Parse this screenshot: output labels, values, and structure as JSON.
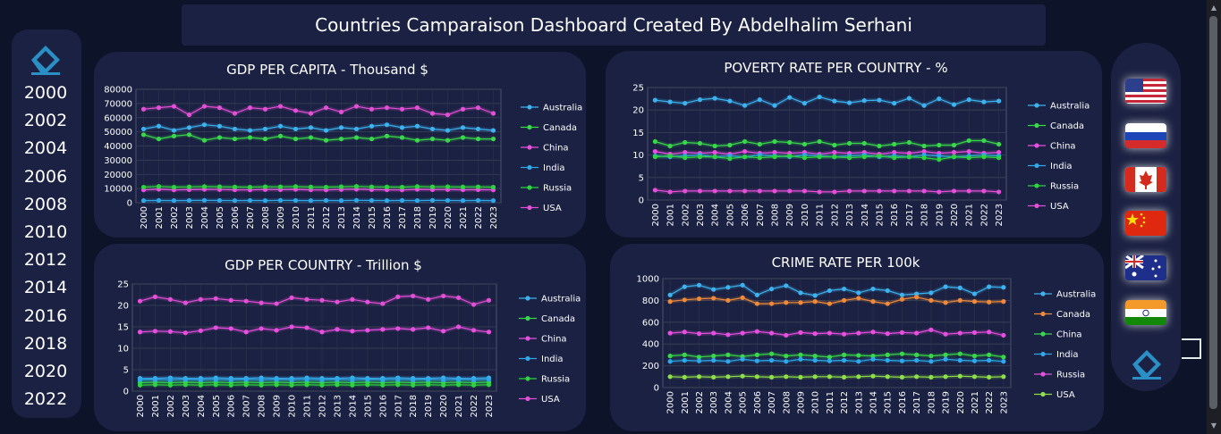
{
  "title": "Countries Camparaison Dashboard Created By Abdelhalim Serhani",
  "years": [
    "2000",
    "2002",
    "2004",
    "2006",
    "2008",
    "2010",
    "2012",
    "2014",
    "2016",
    "2018",
    "2020",
    "2022"
  ],
  "flags": [
    "usa-flag-icon",
    "russia-flag-icon",
    "canada-flag-icon",
    "china-flag-icon",
    "australia-flag-icon",
    "india-flag-icon"
  ],
  "colors": {
    "Australia": "#3cb3f0",
    "Canada": "#39d84a",
    "China": "#e84fe0",
    "India": "#2ea8e8",
    "Russia": "#2ed43f",
    "USA": "#e34fd6",
    "Canada_orange": "#f08a3a",
    "Russia_pink": "#e84fe0",
    "USA_green": "#8ee04a"
  },
  "chart_data": [
    {
      "type": "line",
      "title": "GDP PER CAPITA - Thousand $",
      "x": [
        "2000",
        "2001",
        "2002",
        "2003",
        "2004",
        "2005",
        "2006",
        "2007",
        "2008",
        "2009",
        "2010",
        "2011",
        "2012",
        "2013",
        "2014",
        "2015",
        "2016",
        "2017",
        "2018",
        "2019",
        "2020",
        "2021",
        "2022",
        "2023"
      ],
      "yticks": [
        "0",
        "10000",
        "20000",
        "30000",
        "40000",
        "50000",
        "60000",
        "70000",
        "80000"
      ],
      "ylim": [
        0,
        80000
      ],
      "series": [
        {
          "name": "Australia",
          "color": "#3cb3f0",
          "values": [
            52000,
            54000,
            51000,
            53000,
            55000,
            54000,
            52000,
            51000,
            52000,
            54000,
            52000,
            53000,
            51000,
            53000,
            52000,
            54000,
            55000,
            53000,
            54000,
            52000,
            51000,
            53000,
            52000,
            51000
          ]
        },
        {
          "name": "Canada",
          "color": "#39d84a",
          "values": [
            48000,
            45000,
            47000,
            48000,
            44000,
            46000,
            45000,
            46000,
            45000,
            47000,
            45000,
            46000,
            44000,
            45000,
            46000,
            45000,
            47000,
            46000,
            44000,
            45000,
            44000,
            46000,
            45000,
            45000
          ]
        },
        {
          "name": "China",
          "color": "#e84fe0",
          "values": [
            9000,
            9500,
            9000,
            9200,
            9400,
            9300,
            9100,
            9000,
            9300,
            9200,
            9400,
            9100,
            9000,
            9300,
            9500,
            9200,
            9100,
            9000,
            9400,
            9200,
            9300,
            9100,
            9200,
            9000
          ]
        },
        {
          "name": "India",
          "color": "#2ea8e8",
          "values": [
            1500,
            1600,
            1500,
            1600,
            1700,
            1600,
            1500,
            1600,
            1500,
            1700,
            1600,
            1500,
            1600,
            1500,
            1700,
            1600,
            1500,
            1600,
            1500,
            1700,
            1600,
            1500,
            1600,
            1500
          ]
        },
        {
          "name": "Russia",
          "color": "#2ed43f",
          "values": [
            11000,
            11500,
            11000,
            11200,
            11400,
            11300,
            11100,
            11000,
            11300,
            11200,
            11400,
            11100,
            11000,
            11300,
            11500,
            11200,
            11100,
            11000,
            11400,
            11200,
            11300,
            11100,
            11200,
            11000
          ]
        },
        {
          "name": "USA",
          "color": "#e34fd6",
          "values": [
            66000,
            67000,
            68000,
            62000,
            68000,
            67000,
            63000,
            67000,
            66000,
            68000,
            65000,
            63000,
            67000,
            64000,
            68000,
            66000,
            67000,
            66000,
            67000,
            63000,
            62000,
            66000,
            67000,
            63000
          ]
        }
      ]
    },
    {
      "type": "line",
      "title": "POVERTY RATE PER COUNTRY - %",
      "x": [
        "2000",
        "2001",
        "2002",
        "2003",
        "2004",
        "2005",
        "2006",
        "2007",
        "2008",
        "2009",
        "2010",
        "2011",
        "2012",
        "2013",
        "2014",
        "2015",
        "2016",
        "2017",
        "2018",
        "2019",
        "2020",
        "2021",
        "2022",
        "2023"
      ],
      "yticks": [
        "0",
        "5",
        "10",
        "15",
        "20",
        "25"
      ],
      "ylim": [
        0,
        25
      ],
      "series": [
        {
          "name": "Australia",
          "color": "#3cb3f0",
          "values": [
            22.2,
            21.8,
            21.5,
            22.3,
            22.6,
            22.0,
            21.0,
            22.3,
            21.0,
            22.8,
            21.5,
            22.9,
            22.0,
            21.6,
            22.1,
            22.2,
            21.5,
            22.6,
            21.0,
            22.5,
            21.2,
            22.3,
            21.8,
            22.0
          ]
        },
        {
          "name": "Canada",
          "color": "#39d84a",
          "values": [
            13.0,
            12.0,
            12.8,
            12.6,
            12.0,
            12.2,
            13.0,
            12.4,
            13.0,
            12.8,
            12.4,
            13.0,
            12.2,
            12.6,
            12.6,
            12.0,
            12.4,
            12.8,
            12.0,
            12.2,
            12.2,
            13.2,
            13.2,
            12.4
          ]
        },
        {
          "name": "China",
          "color": "#e84fe0",
          "values": [
            10.8,
            10.2,
            10.6,
            10.4,
            10.6,
            10.2,
            10.8,
            10.4,
            10.6,
            10.4,
            10.6,
            10.2,
            10.6,
            10.4,
            10.6,
            10.2,
            10.6,
            10.4,
            10.8,
            10.4,
            10.6,
            10.8,
            10.4,
            10.6
          ]
        },
        {
          "name": "India",
          "color": "#2ea8e8",
          "values": [
            9.8,
            9.6,
            9.8,
            10.0,
            9.6,
            9.8,
            9.6,
            10.0,
            9.8,
            9.6,
            10.0,
            9.8,
            9.6,
            9.8,
            10.0,
            9.6,
            9.8,
            9.6,
            10.0,
            9.8,
            9.6,
            9.8,
            10.0,
            9.8
          ]
        },
        {
          "name": "Russia",
          "color": "#2ed43f",
          "values": [
            9.6,
            9.8,
            9.4,
            9.6,
            9.6,
            9.2,
            9.6,
            9.4,
            9.6,
            9.8,
            9.4,
            9.6,
            9.6,
            9.4,
            9.6,
            9.8,
            9.4,
            9.6,
            9.4,
            9.0,
            9.6,
            9.4,
            9.6,
            9.4
          ]
        },
        {
          "name": "USA",
          "color": "#e34fd6",
          "values": [
            2.2,
            1.8,
            2.0,
            2.0,
            2.0,
            2.0,
            2.0,
            2.0,
            2.0,
            2.0,
            2.0,
            1.8,
            1.8,
            2.0,
            2.0,
            2.0,
            2.0,
            2.0,
            2.0,
            1.8,
            2.0,
            2.0,
            2.0,
            1.8
          ]
        }
      ]
    },
    {
      "type": "line",
      "title": "GDP PER COUNTRY - Trillion $",
      "x": [
        "2000",
        "2001",
        "2002",
        "2003",
        "2004",
        "2005",
        "2006",
        "2007",
        "2008",
        "2009",
        "2010",
        "2011",
        "2012",
        "2013",
        "2014",
        "2015",
        "2016",
        "2017",
        "2018",
        "2019",
        "2020",
        "2021",
        "2022",
        "2023"
      ],
      "yticks": [
        "0",
        "5",
        "10",
        "15",
        "20",
        "25"
      ],
      "ylim": [
        0,
        25
      ],
      "series": [
        {
          "name": "Australia",
          "color": "#3cb3f0",
          "values": [
            3.0,
            3.0,
            3.1,
            3.0,
            3.0,
            3.1,
            3.0,
            3.0,
            3.1,
            3.0,
            3.0,
            3.1,
            3.0,
            3.0,
            3.1,
            3.0,
            3.0,
            3.1,
            3.0,
            3.0,
            3.1,
            3.0,
            3.0,
            3.1
          ]
        },
        {
          "name": "Canada",
          "color": "#39d84a",
          "values": [
            2.0,
            2.1,
            2.0,
            2.1,
            2.0,
            2.1,
            2.0,
            2.1,
            2.0,
            2.1,
            2.0,
            2.1,
            2.0,
            2.1,
            2.0,
            2.1,
            2.0,
            2.1,
            2.0,
            2.1,
            2.0,
            2.1,
            2.0,
            2.1
          ]
        },
        {
          "name": "China",
          "color": "#e84fe0",
          "values": [
            13.8,
            14.0,
            13.9,
            13.6,
            14.1,
            14.8,
            14.6,
            13.8,
            14.6,
            14.2,
            15.0,
            14.8,
            13.8,
            14.4,
            14.0,
            14.2,
            14.4,
            14.6,
            14.4,
            14.8,
            14.0,
            15.0,
            14.2,
            13.8
          ]
        },
        {
          "name": "India",
          "color": "#2ea8e8",
          "values": [
            2.6,
            2.7,
            2.6,
            2.7,
            2.6,
            2.7,
            2.6,
            2.7,
            2.6,
            2.7,
            2.6,
            2.7,
            2.6,
            2.7,
            2.6,
            2.7,
            2.6,
            2.7,
            2.6,
            2.7,
            2.6,
            2.7,
            2.6,
            2.7
          ]
        },
        {
          "name": "Russia",
          "color": "#2ed43f",
          "values": [
            1.4,
            1.5,
            1.4,
            1.5,
            1.4,
            1.5,
            1.4,
            1.5,
            1.4,
            1.5,
            1.4,
            1.5,
            1.4,
            1.5,
            1.4,
            1.5,
            1.4,
            1.5,
            1.4,
            1.5,
            1.4,
            1.5,
            1.4,
            1.5
          ]
        },
        {
          "name": "USA",
          "color": "#e34fd6",
          "values": [
            21.0,
            22.0,
            21.4,
            20.6,
            21.4,
            21.6,
            21.2,
            21.0,
            20.6,
            20.4,
            21.8,
            21.4,
            21.2,
            20.8,
            21.4,
            20.8,
            20.4,
            22.0,
            22.2,
            21.4,
            22.2,
            21.8,
            20.2,
            21.2
          ]
        }
      ]
    },
    {
      "type": "line",
      "title": "CRIME RATE PER 100k",
      "x": [
        "2000",
        "2001",
        "2002",
        "2003",
        "2004",
        "2005",
        "2006",
        "2007",
        "2008",
        "2009",
        "2010",
        "2011",
        "2012",
        "2013",
        "2014",
        "2015",
        "2016",
        "2017",
        "2018",
        "2019",
        "2020",
        "2021",
        "2022",
        "2023"
      ],
      "yticks": [
        "0",
        "200",
        "400",
        "600",
        "800",
        "1000"
      ],
      "ylim": [
        0,
        1000
      ],
      "series": [
        {
          "name": "Australia",
          "color": "#3cb3f0",
          "values": [
            850,
            925,
            940,
            900,
            920,
            940,
            850,
            905,
            935,
            870,
            845,
            890,
            905,
            870,
            905,
            890,
            850,
            860,
            870,
            925,
            915,
            860,
            925,
            920
          ]
        },
        {
          "name": "Canada",
          "color": "#f08a3a",
          "values": [
            790,
            805,
            815,
            820,
            800,
            825,
            770,
            770,
            780,
            780,
            790,
            770,
            800,
            820,
            790,
            770,
            810,
            830,
            800,
            780,
            800,
            790,
            785,
            790
          ]
        },
        {
          "name": "China",
          "color": "#39d84a",
          "values": [
            290,
            300,
            280,
            290,
            300,
            285,
            300,
            310,
            290,
            300,
            290,
            280,
            300,
            295,
            290,
            300,
            310,
            300,
            290,
            300,
            310,
            290,
            300,
            280
          ]
        },
        {
          "name": "India",
          "color": "#2ea8e8",
          "values": [
            240,
            250,
            245,
            250,
            240,
            260,
            245,
            250,
            240,
            260,
            250,
            245,
            250,
            240,
            260,
            250,
            245,
            250,
            240,
            260,
            250,
            245,
            250,
            240
          ]
        },
        {
          "name": "Russia",
          "color": "#e84fe0",
          "values": [
            500,
            510,
            495,
            500,
            485,
            500,
            515,
            500,
            480,
            505,
            495,
            500,
            490,
            500,
            510,
            495,
            505,
            500,
            530,
            490,
            500,
            505,
            510,
            480
          ]
        },
        {
          "name": "USA",
          "color": "#8ee04a",
          "values": [
            100,
            95,
            100,
            95,
            100,
            105,
            100,
            95,
            100,
            95,
            100,
            100,
            95,
            100,
            105,
            100,
            95,
            100,
            95,
            100,
            105,
            100,
            95,
            100
          ]
        }
      ]
    }
  ]
}
